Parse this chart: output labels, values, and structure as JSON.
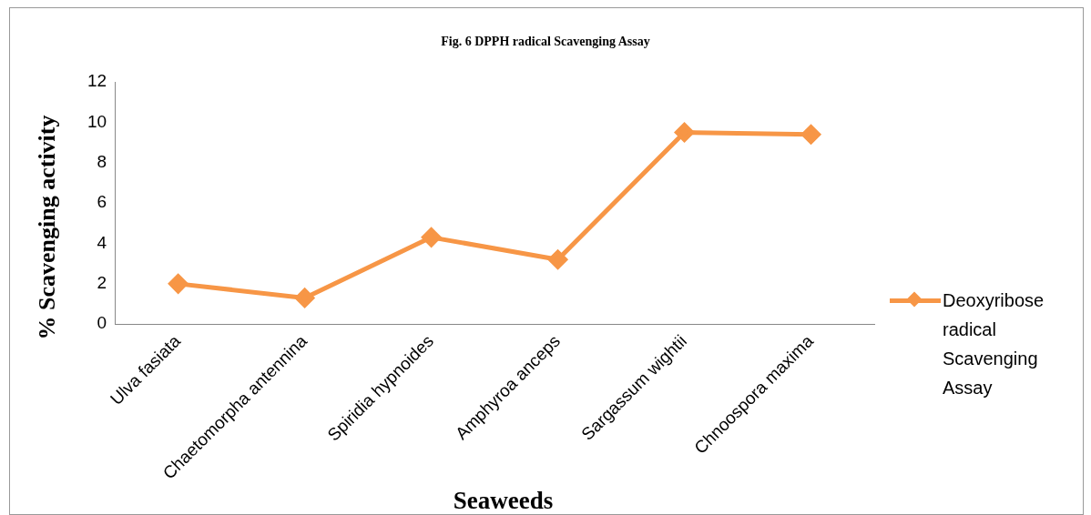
{
  "chart_data": {
    "type": "line",
    "title": "Fig. 6  DPPH radical Scavenging Assay",
    "xlabel": "Seaweeds",
    "ylabel": "% Scavenging activity",
    "categories": [
      "Ulva fasiata",
      "Chaetomorpha antennina",
      "Spiridia hypnoides",
      "Amphyroa anceps",
      "Sargassum wightii",
      "Chnoospora maxima"
    ],
    "series": [
      {
        "name": "Deoxyribose radical Scavenging Assay",
        "color": "#f79646",
        "values": [
          2.0,
          1.3,
          4.3,
          3.2,
          9.5,
          9.4
        ]
      }
    ],
    "ylim": [
      0,
      12
    ],
    "yticks": [
      0,
      2,
      4,
      6,
      8,
      10,
      12
    ],
    "grid": false,
    "legend": "right",
    "marker": "diamond",
    "line_style": "solid"
  }
}
